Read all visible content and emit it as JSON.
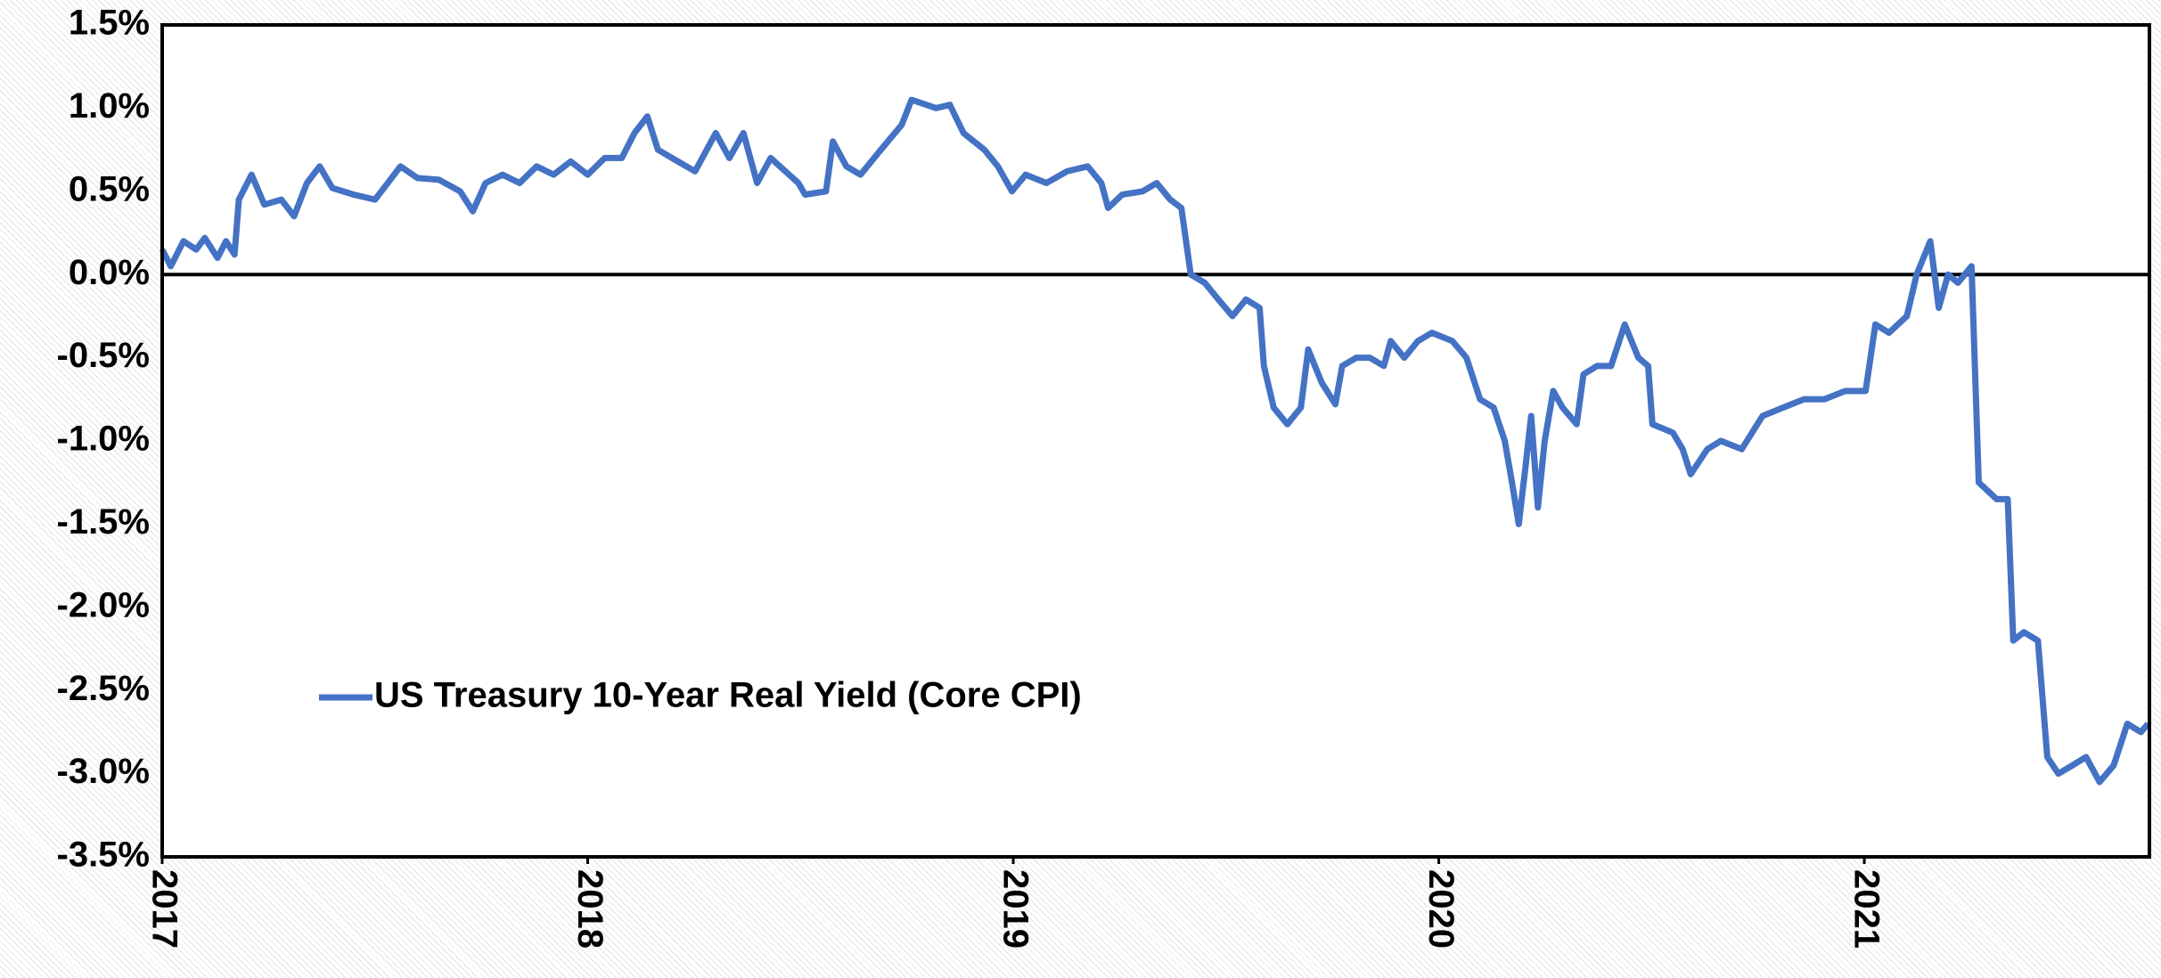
{
  "chart_data": {
    "type": "line",
    "legend": "lower left",
    "xlim": [
      2017,
      2021.67
    ],
    "xticks": [
      2017,
      2018,
      2019,
      2020,
      2021
    ],
    "ylim": [
      -3.5,
      1.5
    ],
    "yticks": [
      {
        "value": 1.5,
        "label": "1.5%"
      },
      {
        "value": 1.0,
        "label": "1.0%"
      },
      {
        "value": 0.5,
        "label": "0.5%"
      },
      {
        "value": 0.0,
        "label": "0.0%"
      },
      {
        "value": -0.5,
        "label": "-0.5%"
      },
      {
        "value": -1.0,
        "label": "-1.0%"
      },
      {
        "value": -1.5,
        "label": "-1.5%"
      },
      {
        "value": -2.0,
        "label": "-2.0%"
      },
      {
        "value": -2.5,
        "label": "-2.5%"
      },
      {
        "value": -3.0,
        "label": "-3.0%"
      },
      {
        "value": -3.5,
        "label": "-3.5%"
      }
    ],
    "series": [
      {
        "name": "US Treasury 10-Year Real Yield (Core CPI)",
        "color": "#4472c4",
        "x": [
          2017.0,
          2017.02,
          2017.05,
          2017.08,
          2017.1,
          2017.13,
          2017.15,
          2017.17,
          2017.18,
          2017.21,
          2017.24,
          2017.28,
          2017.31,
          2017.34,
          2017.37,
          2017.4,
          2017.45,
          2017.5,
          2017.53,
          2017.56,
          2017.6,
          2017.65,
          2017.7,
          2017.73,
          2017.76,
          2017.8,
          2017.84,
          2017.88,
          2017.92,
          2017.96,
          2018.0,
          2018.04,
          2018.08,
          2018.11,
          2018.14,
          2018.165,
          2018.252,
          2018.301,
          2018.333,
          2018.366,
          2018.398,
          2018.43,
          2018.495,
          2018.511,
          2018.56,
          2018.576,
          2018.608,
          2018.641,
          2018.689,
          2018.738,
          2018.761,
          2018.819,
          2018.851,
          2018.883,
          2018.932,
          2018.964,
          2018.997,
          2019.029,
          2019.078,
          2019.126,
          2019.175,
          2019.207,
          2019.223,
          2019.256,
          2019.304,
          2019.337,
          2019.369,
          2019.395,
          2019.417,
          2019.45,
          2019.482,
          2019.515,
          2019.547,
          2019.579,
          2019.589,
          2019.612,
          2019.644,
          2019.676,
          2019.693,
          2019.725,
          2019.757,
          2019.773,
          2019.806,
          2019.838,
          2019.871,
          2019.887,
          2019.919,
          2019.951,
          2019.984,
          2020.032,
          2020.065,
          2020.097,
          2020.129,
          2020.155,
          2020.172,
          2020.188,
          2020.204,
          2020.217,
          2020.233,
          2020.249,
          2020.269,
          2020.291,
          2020.324,
          2020.34,
          2020.372,
          2020.405,
          2020.437,
          2020.469,
          2020.492,
          2020.502,
          2020.55,
          2020.573,
          2020.592,
          2020.631,
          2020.663,
          2020.712,
          2020.761,
          2020.809,
          2020.858,
          2020.906,
          2020.955,
          2021.003,
          2021.026,
          2021.058,
          2021.1,
          2021.123,
          2021.155,
          2021.175,
          2021.197,
          2021.22,
          2021.252,
          2021.269,
          2021.311,
          2021.337,
          2021.35,
          2021.375,
          2021.408,
          2021.43,
          2021.456,
          2021.489,
          2021.521,
          2021.553,
          2021.586,
          2021.618,
          2021.65,
          2021.667
        ],
        "values": [
          0.15,
          0.05,
          0.2,
          0.15,
          0.22,
          0.1,
          0.2,
          0.12,
          0.45,
          0.6,
          0.42,
          0.45,
          0.35,
          0.55,
          0.65,
          0.52,
          0.48,
          0.45,
          0.55,
          0.65,
          0.58,
          0.57,
          0.5,
          0.38,
          0.55,
          0.6,
          0.55,
          0.65,
          0.6,
          0.68,
          0.6,
          0.7,
          0.7,
          0.85,
          0.95,
          0.75,
          0.62,
          0.85,
          0.7,
          0.85,
          0.55,
          0.7,
          0.55,
          0.48,
          0.5,
          0.8,
          0.65,
          0.6,
          0.75,
          0.9,
          1.05,
          1.0,
          1.02,
          0.85,
          0.75,
          0.65,
          0.5,
          0.6,
          0.55,
          0.62,
          0.65,
          0.55,
          0.4,
          0.48,
          0.5,
          0.55,
          0.45,
          0.4,
          0.0,
          -0.05,
          -0.15,
          -0.25,
          -0.15,
          -0.2,
          -0.55,
          -0.8,
          -0.9,
          -0.8,
          -0.45,
          -0.65,
          -0.78,
          -0.55,
          -0.5,
          -0.5,
          -0.55,
          -0.4,
          -0.5,
          -0.4,
          -0.35,
          -0.4,
          -0.5,
          -0.75,
          -0.8,
          -1.0,
          -1.25,
          -1.5,
          -1.15,
          -0.85,
          -1.4,
          -1.0,
          -0.7,
          -0.8,
          -0.9,
          -0.6,
          -0.55,
          -0.55,
          -0.3,
          -0.5,
          -0.55,
          -0.9,
          -0.95,
          -1.05,
          -1.2,
          -1.05,
          -1.0,
          -1.05,
          -0.85,
          -0.8,
          -0.75,
          -0.75,
          -0.7,
          -0.7,
          -0.3,
          -0.35,
          -0.25,
          0.0,
          0.2,
          -0.2,
          0.0,
          -0.05,
          0.05,
          -1.25,
          -1.35,
          -1.35,
          -2.2,
          -2.15,
          -2.2,
          -2.9,
          -3.0,
          -2.95,
          -2.9,
          -3.05,
          -2.95,
          -2.7,
          -2.75,
          -2.7
        ]
      }
    ]
  }
}
